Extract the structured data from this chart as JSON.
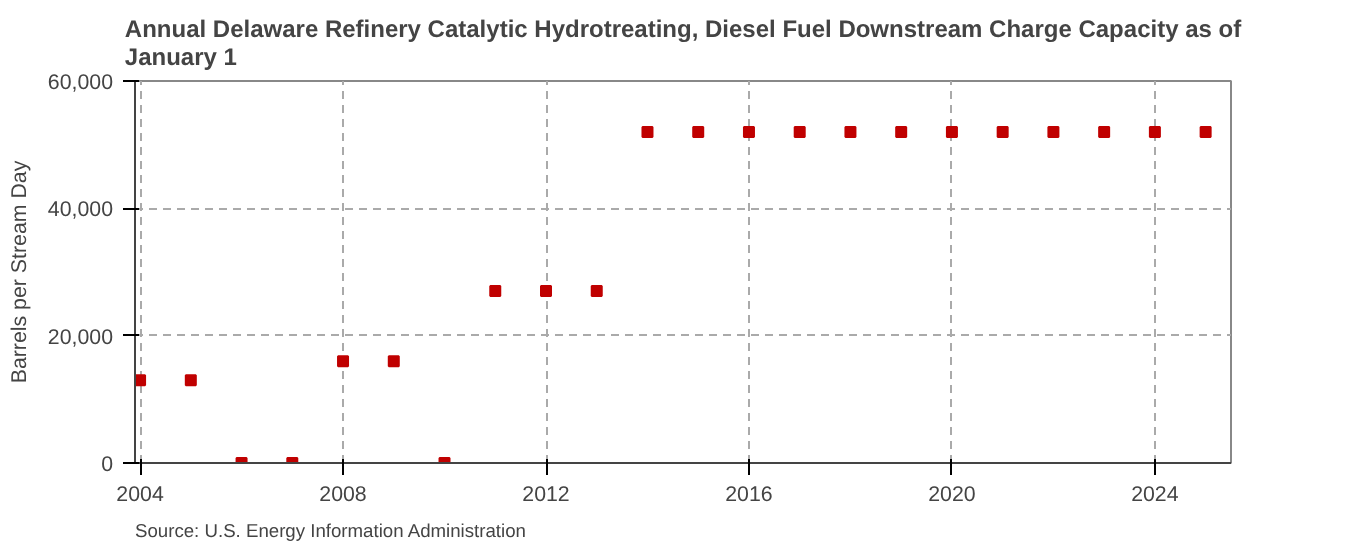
{
  "chart_data": {
    "type": "scatter",
    "title": "Annual Delaware Refinery Catalytic Hydrotreating, Diesel Fuel Downstream Charge Capacity as of January 1",
    "ylabel": "Barrels per Stream Day",
    "x": [
      2004,
      2005,
      2006,
      2007,
      2008,
      2009,
      2010,
      2011,
      2012,
      2013,
      2014,
      2015,
      2016,
      2017,
      2018,
      2019,
      2020,
      2021,
      2022,
      2023,
      2024,
      2025
    ],
    "series": [
      {
        "color": "#c00000",
        "values": [
          13000,
          13000,
          0,
          0,
          16000,
          16000,
          0,
          27000,
          27000,
          27000,
          52000,
          52000,
          52000,
          52000,
          52000,
          52000,
          52000,
          52000,
          52000,
          52000,
          52000,
          52000
        ]
      }
    ],
    "xlim": [
      2003.9,
      2025.5
    ],
    "xticks": [
      2004,
      2008,
      2012,
      2016,
      2020,
      2024
    ],
    "ylim": [
      0,
      60000
    ],
    "yticks": [
      {
        "value": 0,
        "label": "0"
      },
      {
        "value": 20000,
        "label": "20,000"
      },
      {
        "value": 40000,
        "label": "40,000"
      },
      {
        "value": 60000,
        "label": "60,000"
      }
    ],
    "grid": true,
    "marker": "square",
    "annotations": [
      "Source: U.S. Energy Information Administration"
    ]
  }
}
